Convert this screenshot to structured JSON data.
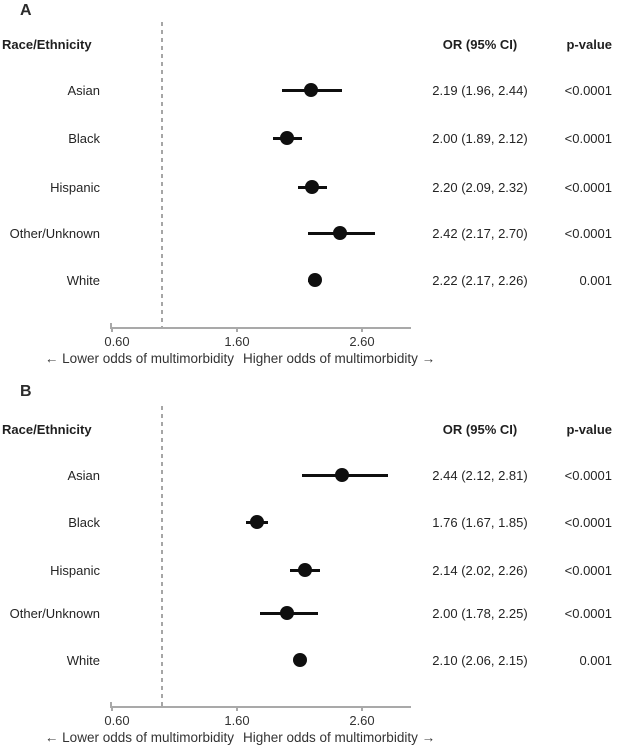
{
  "colors": {
    "marker": "#0f0f0f",
    "axis": "#a9a9a9",
    "reference_line": "#a6a6a6",
    "text": "#232323"
  },
  "chart_data": [
    {
      "type": "scatter",
      "variant": "forest-plot",
      "panel_label": "A",
      "column_headers": {
        "race": "Race/Ethnicity",
        "or": "OR (95% CI)",
        "p": "p-value"
      },
      "categories": [
        "Asian",
        "Black",
        "Hispanic",
        "Other/Unknown",
        "White"
      ],
      "series": [
        {
          "name": "OR",
          "values": [
            2.19,
            2.0,
            2.2,
            2.42,
            2.22
          ]
        },
        {
          "name": "CI_lower",
          "values": [
            1.96,
            1.89,
            2.09,
            2.17,
            2.17
          ]
        },
        {
          "name": "CI_upper",
          "values": [
            2.44,
            2.12,
            2.32,
            2.7,
            2.26
          ]
        }
      ],
      "or_ci_labels": [
        "2.19 (1.96, 2.44)",
        "2.00 (1.89, 2.12)",
        "2.20 (2.09, 2.32)",
        "2.42 (2.17, 2.70)",
        "2.22 (2.17, 2.26)"
      ],
      "p_values": [
        "<0.0001",
        "<0.0001",
        "<0.0001",
        "<0.0001",
        "0.001"
      ],
      "x_ticks": [
        {
          "value": 0.6,
          "label": "0.60"
        },
        {
          "value": 1.6,
          "label": "1.60"
        },
        {
          "value": 2.6,
          "label": "2.60"
        }
      ],
      "xlim": [
        0.55,
        3.0
      ],
      "grid": false,
      "reference_line": 1.0,
      "xlabel_left": "← Lower odds of multimorbidity",
      "xlabel_right": "Higher odds of multimorbidity →"
    },
    {
      "type": "scatter",
      "variant": "forest-plot",
      "panel_label": "B",
      "column_headers": {
        "race": "Race/Ethnicity",
        "or": "OR (95% CI)",
        "p": "p-value"
      },
      "categories": [
        "Asian",
        "Black",
        "Hispanic",
        "Other/Unknown",
        "White"
      ],
      "series": [
        {
          "name": "OR",
          "values": [
            2.44,
            1.76,
            2.14,
            2.0,
            2.1
          ]
        },
        {
          "name": "CI_lower",
          "values": [
            2.12,
            1.67,
            2.02,
            1.78,
            2.06
          ]
        },
        {
          "name": "CI_upper",
          "values": [
            2.81,
            1.85,
            2.26,
            2.25,
            2.15
          ]
        }
      ],
      "or_ci_labels": [
        "2.44 (2.12, 2.81)",
        "1.76 (1.67, 1.85)",
        "2.14 (2.02, 2.26)",
        "2.00 (1.78, 2.25)",
        "2.10 (2.06, 2.15)"
      ],
      "p_values": [
        "<0.0001",
        "<0.0001",
        "<0.0001",
        "<0.0001",
        "0.001"
      ],
      "x_ticks": [
        {
          "value": 0.6,
          "label": "0.60"
        },
        {
          "value": 1.6,
          "label": "1.60"
        },
        {
          "value": 2.6,
          "label": "2.60"
        }
      ],
      "xlim": [
        0.55,
        3.0
      ],
      "grid": false,
      "reference_line": 1.0,
      "xlabel_left": "← Lower odds of multimorbidity",
      "xlabel_right": "Higher odds of multimorbidity →"
    }
  ]
}
